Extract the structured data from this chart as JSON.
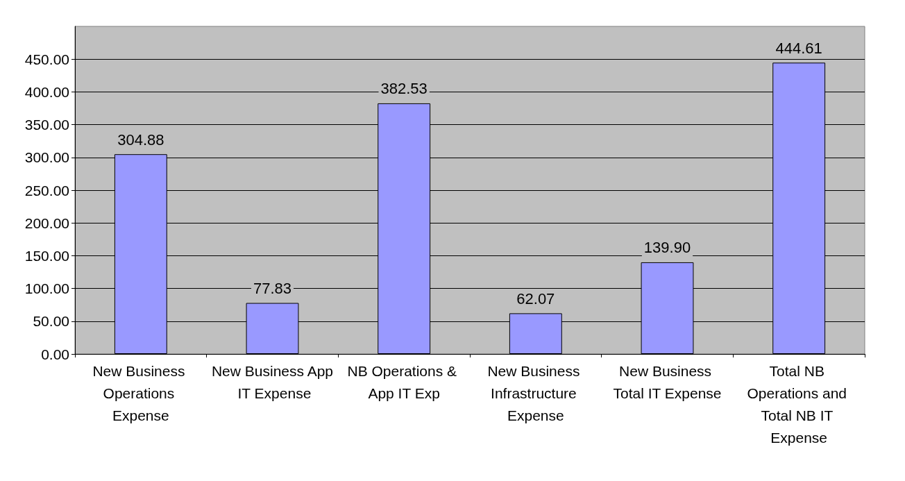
{
  "chart_data": {
    "type": "bar",
    "categories": [
      "New Business Operations Expense",
      "New Business App IT Expense",
      "NB Operations & App IT Exp",
      "New Business Infrastructure Expense",
      "New Business Total IT Expense",
      "Total NB Operations and Total NB IT Expense"
    ],
    "values": [
      304.88,
      77.83,
      382.53,
      62.07,
      139.9,
      444.61
    ],
    "value_labels": [
      "304.88",
      "77.83",
      "382.53",
      "62.07",
      "139.90",
      "444.61"
    ],
    "color": "#9999ff",
    "ylim": [
      0,
      500
    ],
    "yticks": [
      {
        "value": 0,
        "label": "0.00"
      },
      {
        "value": 50,
        "label": "50.00"
      },
      {
        "value": 100,
        "label": "100.00"
      },
      {
        "value": 150,
        "label": "150.00"
      },
      {
        "value": 200,
        "label": "200.00"
      },
      {
        "value": 250,
        "label": "250.00"
      },
      {
        "value": 300,
        "label": "300.00"
      },
      {
        "value": 350,
        "label": "350.00"
      },
      {
        "value": 400,
        "label": "400.00"
      },
      {
        "value": 450,
        "label": "450.00"
      }
    ],
    "grid": "y"
  }
}
